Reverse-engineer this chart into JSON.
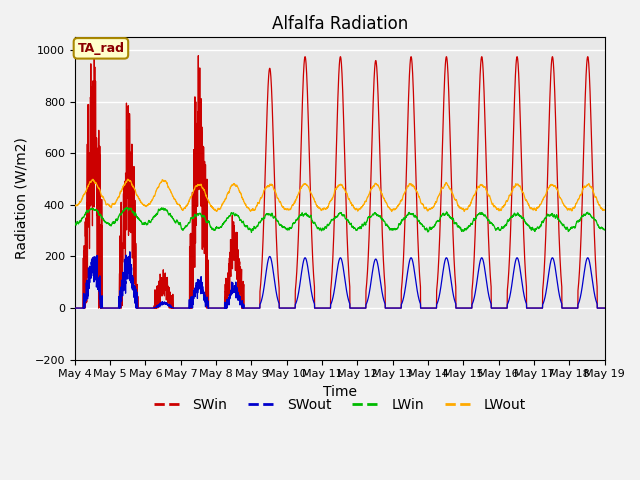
{
  "title": "Alfalfa Radiation",
  "xlabel": "Time",
  "ylabel": "Radiation (W/m2)",
  "ylim": [
    -200,
    1050
  ],
  "background_color": "#e8e8e8",
  "fig_background_color": "#f2f2f2",
  "grid_color": "#ffffff",
  "annotation_label": "TA_rad",
  "annotation_box_color": "#ffffcc",
  "annotation_border_color": "#aa8800",
  "line_colors": {
    "SWin": "#cc0000",
    "SWout": "#0000cc",
    "LWin": "#00bb00",
    "LWout": "#ffaa00"
  },
  "x_tick_labels": [
    "May 4",
    "May 5",
    "May 6",
    "May 7",
    "May 8",
    "May 9",
    "May 10",
    "May 11",
    "May 12",
    "May 13",
    "May 14",
    "May 15",
    "May 16",
    "May 17",
    "May 18",
    "May 19"
  ],
  "y_ticks": [
    -200,
    0,
    200,
    400,
    600,
    800,
    1000
  ],
  "title_fontsize": 12,
  "axis_label_fontsize": 10,
  "tick_fontsize": 8,
  "legend_fontsize": 10
}
